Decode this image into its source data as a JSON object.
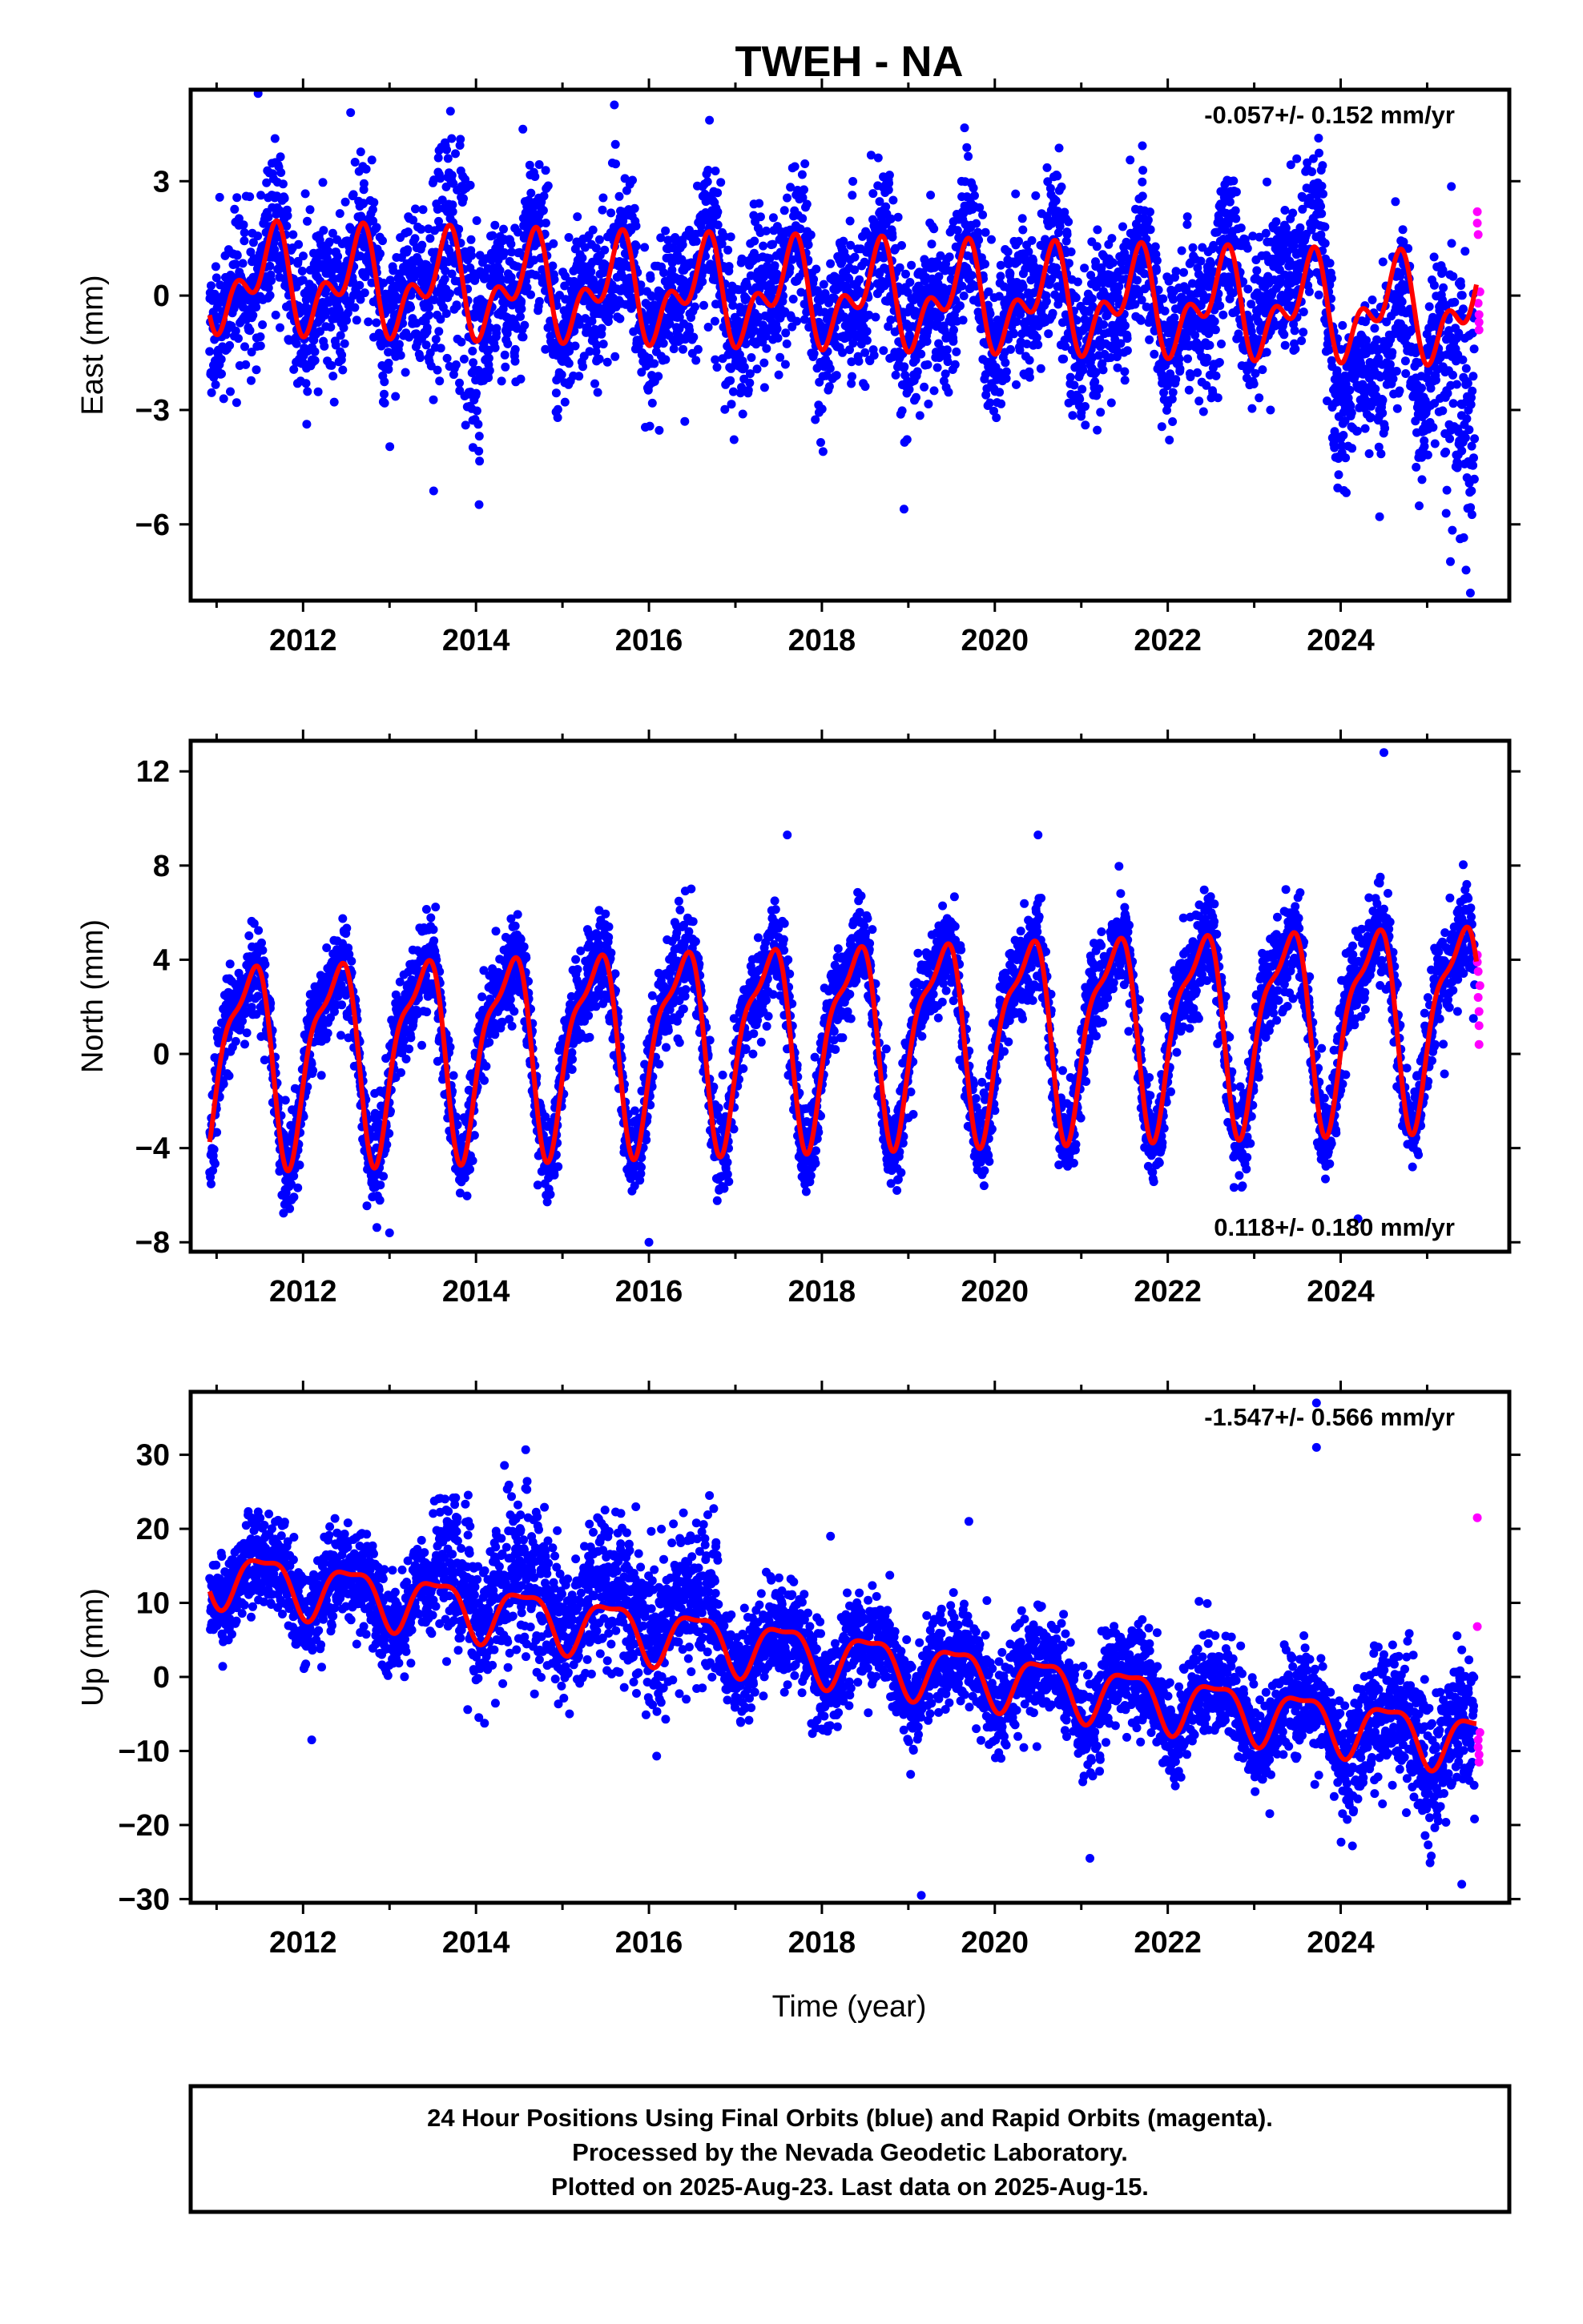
{
  "title": "TWEH - NA",
  "xlabel": "Time (year)",
  "footer": [
    "24 Hour Positions Using Final Orbits (blue) and Rapid Orbits (magenta).",
    "Processed by the Nevada Geodetic Laboratory.",
    "Plotted on 2025-Aug-23. Last data on 2025-Aug-15."
  ],
  "colors": {
    "final": "#0000ff",
    "rapid": "#ff00ff",
    "model": "#ff0000",
    "frame": "#000000"
  },
  "chart_data": [
    {
      "type": "scatter",
      "ylabel": "East (mm)",
      "rate": "-0.057+/- 0.152 mm/yr",
      "rate_position": "top-right",
      "xlim": [
        2010.7,
        2025.95
      ],
      "ylim": [
        -8,
        5.4
      ],
      "xticks": [
        2012,
        2014,
        2016,
        2018,
        2020,
        2022,
        2024
      ],
      "yticks": [
        3,
        0,
        -3,
        -6
      ],
      "ytick_labels": [
        "3",
        "0",
        "−3",
        "−6"
      ],
      "model": {
        "offset": 0.0,
        "rate": -0.057,
        "annual_amp": 1.0,
        "annual_phase": 0.62,
        "semi_amp": 0.75,
        "semi_phase": 0.72
      },
      "final_series": {
        "start": 2010.92,
        "end": 2025.55,
        "noise": 1.0,
        "seed": 11,
        "notes": [
          {
            "x": [
              2013.5,
              2014.05
            ],
            "extra": 0.8
          },
          {
            "x": [
              2023.0,
              2023.8
            ],
            "shift": 0.9
          },
          {
            "x": [
              2023.9,
              2025.0
            ],
            "shift": -1.4
          },
          {
            "x": [
              2025.2,
              2025.6
            ],
            "shift": -2.0,
            "extra": 1.0
          }
        ]
      },
      "outliers": [
        [
          2011.48,
          5.3
        ],
        [
          2018.95,
          -5.6
        ],
        [
          2025.5,
          -7.8
        ],
        [
          2025.45,
          -7.2
        ],
        [
          2012.55,
          4.8
        ],
        [
          2015.6,
          5.0
        ],
        [
          2016.7,
          4.6
        ],
        [
          2019.65,
          4.4
        ],
        [
          2024.45,
          -5.8
        ]
      ],
      "rapid": [
        [
          2025.58,
          2.2
        ],
        [
          2025.58,
          1.9
        ],
        [
          2025.59,
          1.6
        ],
        [
          2025.59,
          -0.2
        ],
        [
          2025.6,
          -0.5
        ],
        [
          2025.6,
          -0.7
        ],
        [
          2025.6,
          -0.9
        ],
        [
          2025.61,
          0.1
        ]
      ]
    },
    {
      "type": "scatter",
      "ylabel": "North (mm)",
      "rate": "0.118+/- 0.180 mm/yr",
      "rate_position": "bottom-right",
      "xlim": [
        2010.7,
        2025.95
      ],
      "ylim": [
        -8.4,
        13.3
      ],
      "xticks": [
        2012,
        2014,
        2016,
        2018,
        2020,
        2022,
        2024
      ],
      "yticks": [
        12,
        8,
        4,
        0,
        -4,
        -8
      ],
      "ytick_labels": [
        "12",
        "8",
        "4",
        "0",
        "−4",
        "−8"
      ],
      "model": {
        "offset": 0.8,
        "rate": 0.118,
        "annual_amp": 3.9,
        "annual_phase": 0.36,
        "semi_amp": 1.3,
        "semi_phase": 0.55
      },
      "final_series": {
        "start": 2010.92,
        "end": 2025.55,
        "noise": 1.0,
        "seed": 23,
        "notes": []
      },
      "outliers": [
        [
          2024.5,
          12.8
        ],
        [
          2016.0,
          -8.0
        ],
        [
          2017.6,
          9.3
        ],
        [
          2020.5,
          9.3
        ],
        [
          2024.2,
          -7.0
        ],
        [
          2013.0,
          -7.6
        ]
      ],
      "rapid": [
        [
          2025.58,
          4.2
        ],
        [
          2025.58,
          3.9
        ],
        [
          2025.59,
          3.5
        ],
        [
          2025.59,
          2.4
        ],
        [
          2025.6,
          1.8
        ],
        [
          2025.6,
          1.2
        ],
        [
          2025.6,
          0.4
        ],
        [
          2025.61,
          2.9
        ]
      ]
    },
    {
      "type": "scatter",
      "ylabel": "Up (mm)",
      "rate": "-1.547+/- 0.566 mm/yr",
      "rate_position": "top-right",
      "xlim": [
        2010.7,
        2025.95
      ],
      "ylim": [
        -30.5,
        38.5
      ],
      "xticks": [
        2012,
        2014,
        2016,
        2018,
        2020,
        2022,
        2024
      ],
      "yticks": [
        30,
        20,
        10,
        0,
        -10,
        -20,
        -30
      ],
      "ytick_labels": [
        "30",
        "20",
        "10",
        "0",
        "−10",
        "−20",
        "−30"
      ],
      "model": {
        "offset": 3.0,
        "rate": -1.547,
        "annual_amp": 3.6,
        "annual_phase": 0.55,
        "semi_amp": 1.2,
        "semi_phase": 0.3
      },
      "final_series": {
        "start": 2010.92,
        "end": 2025.55,
        "noise": 3.2,
        "seed": 37,
        "notes": [
          {
            "x": [
              2013.5,
              2016.8
            ],
            "extra": 2.0,
            "shift": 2.5
          },
          {
            "x": [
              2024.0,
              2025.6
            ],
            "extra": 1.5
          }
        ]
      },
      "outliers": [
        [
          2023.72,
          37.0
        ],
        [
          2023.72,
          31.0
        ],
        [
          2019.15,
          -29.5
        ],
        [
          2012.1,
          -8.5
        ],
        [
          2016.7,
          24.5
        ],
        [
          2021.1,
          -24.5
        ],
        [
          2025.4,
          -28.0
        ],
        [
          2018.1,
          19.0
        ],
        [
          2019.7,
          21.0
        ]
      ],
      "rapid": [
        [
          2025.58,
          21.5
        ],
        [
          2025.58,
          6.8
        ],
        [
          2025.59,
          -8.5
        ],
        [
          2025.59,
          -9.5
        ],
        [
          2025.6,
          -10.5
        ],
        [
          2025.6,
          -11.5
        ],
        [
          2025.61,
          -7.5
        ]
      ]
    }
  ]
}
